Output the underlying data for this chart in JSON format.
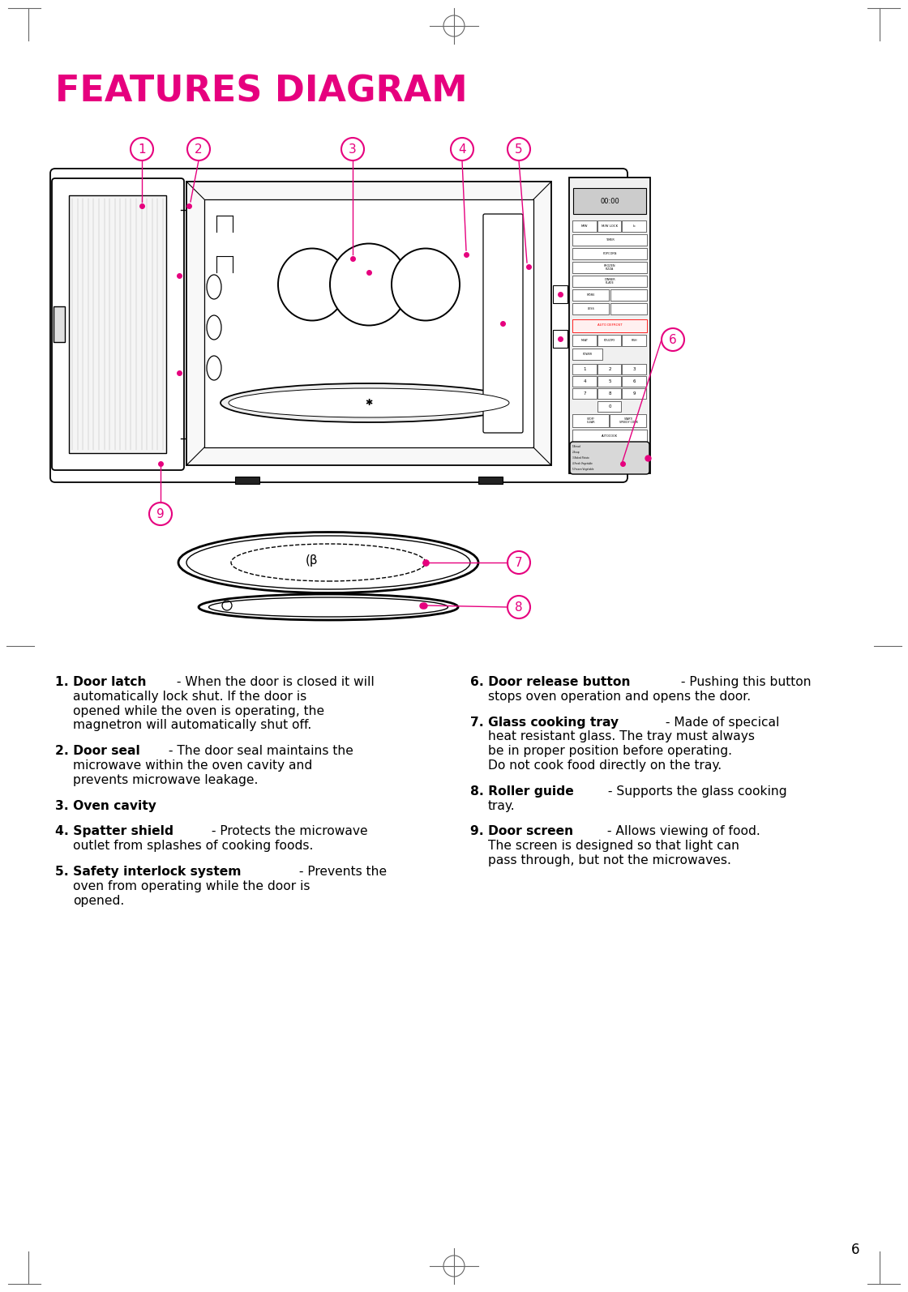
{
  "title": "FEATURES DIAGRAM",
  "title_color": "#E6007E",
  "title_fontsize": 32,
  "background_color": "#FFFFFF",
  "page_number": "6",
  "callout_color": "#E6007E",
  "items": [
    {
      "num": "1",
      "bold": "Door latch",
      "lines": [
        " - When the door is closed it will",
        "automatically lock shut. If the door is",
        "opened while the oven is operating, the",
        "magnetron will automatically shut off."
      ]
    },
    {
      "num": "2",
      "bold": "Door seal",
      "lines": [
        " - The door seal maintains the",
        "microwave within the oven cavity and",
        "prevents microwave leakage."
      ]
    },
    {
      "num": "3",
      "bold": "Oven cavity",
      "lines": []
    },
    {
      "num": "4",
      "bold": "Spatter shield",
      "lines": [
        " - Protects the microwave",
        "outlet from splashes of cooking foods."
      ]
    },
    {
      "num": "5",
      "bold": "Safety interlock system",
      "lines": [
        " - Prevents the",
        "oven from operating while the door is",
        "opened."
      ]
    },
    {
      "num": "6",
      "bold": "Door release button",
      "lines": [
        " - Pushing this button",
        "stops oven operation and opens the door."
      ]
    },
    {
      "num": "7",
      "bold": "Glass cooking tray",
      "lines": [
        " - Made of specical",
        "heat resistant glass. The tray must always",
        "be in proper position before operating.",
        "Do not cook food directly on the tray."
      ]
    },
    {
      "num": "8",
      "bold": "Roller guide",
      "lines": [
        " - Supports the glass cooking",
        "tray."
      ]
    },
    {
      "num": "9",
      "bold": "Door screen",
      "lines": [
        " - Allows viewing of food.",
        "The screen is designed so that light can",
        "pass through, but not the microwaves."
      ]
    }
  ]
}
